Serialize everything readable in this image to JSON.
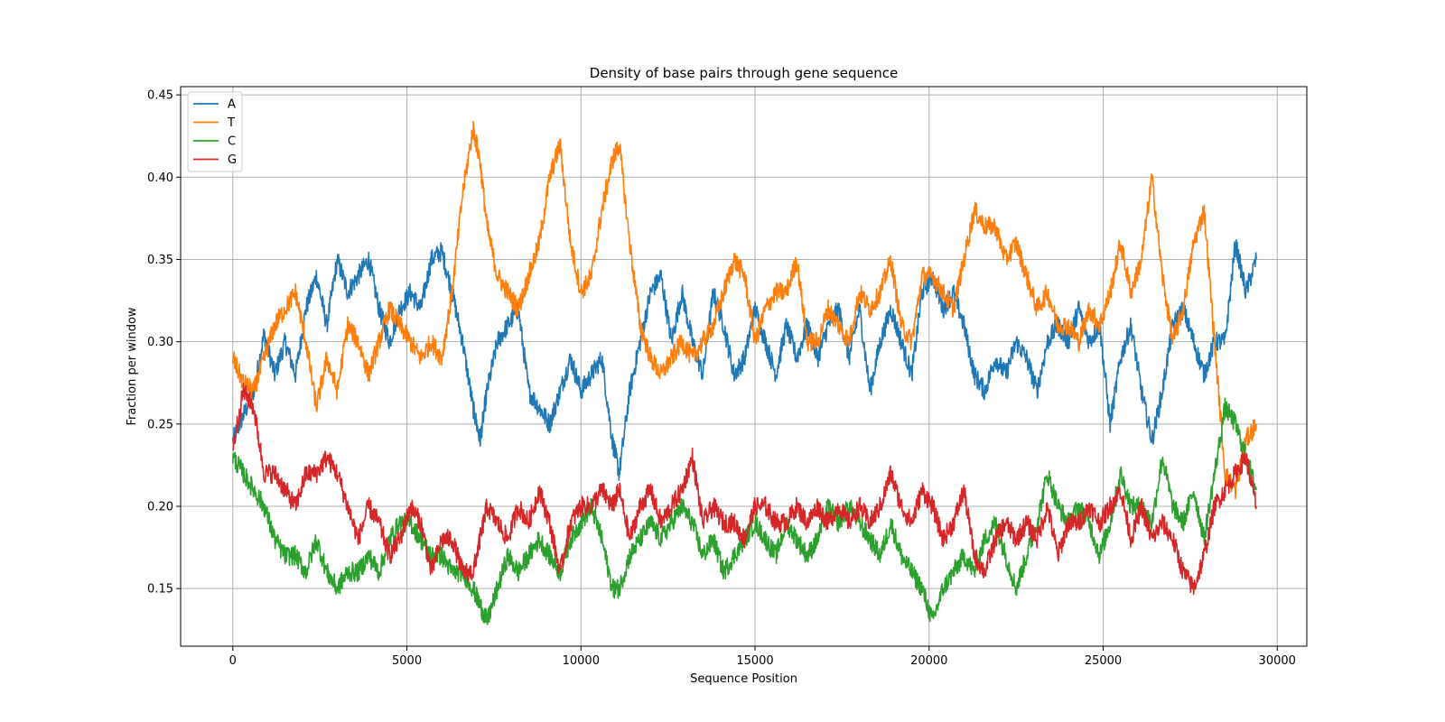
{
  "chart_data": {
    "type": "line",
    "title": "Density of base pairs through gene sequence",
    "xlabel": "Sequence Position",
    "ylabel": "Fraction per window",
    "xlim": [
      -1500,
      30850
    ],
    "ylim": [
      0.115,
      0.455
    ],
    "xticks": [
      0,
      5000,
      10000,
      15000,
      20000,
      25000,
      30000
    ],
    "yticks": [
      0.15,
      0.2,
      0.25,
      0.3,
      0.35,
      0.4,
      0.45
    ],
    "ytick_labels": [
      "0.15",
      "0.20",
      "0.25",
      "0.30",
      "0.35",
      "0.40",
      "0.45"
    ],
    "grid": true,
    "legend_position": "upper-left",
    "series": [
      {
        "name": "A",
        "color": "#1f77b4",
        "x": [
          0,
          300,
          600,
          900,
          1200,
          1500,
          1800,
          2100,
          2400,
          2700,
          3000,
          3300,
          3600,
          3900,
          4200,
          4500,
          4800,
          5100,
          5400,
          5700,
          6000,
          6300,
          6600,
          6900,
          7100,
          7300,
          7600,
          7900,
          8200,
          8500,
          8800,
          9100,
          9400,
          9700,
          10000,
          10300,
          10600,
          10900,
          11100,
          11400,
          11700,
          12000,
          12300,
          12600,
          12900,
          13200,
          13500,
          13800,
          14100,
          14400,
          14700,
          15000,
          15300,
          15600,
          15900,
          16200,
          16500,
          16800,
          17100,
          17400,
          17700,
          18000,
          18300,
          18600,
          18900,
          19200,
          19500,
          19800,
          20100,
          20400,
          20700,
          21000,
          21300,
          21600,
          21900,
          22200,
          22500,
          22800,
          23100,
          23400,
          23700,
          24000,
          24300,
          24600,
          24900,
          25200,
          25500,
          25800,
          26100,
          26400,
          26700,
          27000,
          27300,
          27600,
          27900,
          28200,
          28500,
          28800,
          29100,
          29400
        ],
        "values": [
          0.24,
          0.255,
          0.27,
          0.305,
          0.28,
          0.3,
          0.28,
          0.32,
          0.34,
          0.31,
          0.35,
          0.33,
          0.34,
          0.35,
          0.32,
          0.3,
          0.32,
          0.33,
          0.32,
          0.35,
          0.355,
          0.33,
          0.3,
          0.26,
          0.24,
          0.27,
          0.3,
          0.31,
          0.32,
          0.27,
          0.26,
          0.25,
          0.27,
          0.29,
          0.27,
          0.28,
          0.29,
          0.24,
          0.22,
          0.27,
          0.3,
          0.33,
          0.34,
          0.3,
          0.33,
          0.3,
          0.28,
          0.33,
          0.31,
          0.28,
          0.29,
          0.32,
          0.3,
          0.28,
          0.31,
          0.29,
          0.31,
          0.29,
          0.31,
          0.32,
          0.29,
          0.32,
          0.27,
          0.3,
          0.32,
          0.3,
          0.28,
          0.33,
          0.34,
          0.32,
          0.33,
          0.31,
          0.28,
          0.27,
          0.29,
          0.28,
          0.3,
          0.29,
          0.27,
          0.3,
          0.31,
          0.3,
          0.32,
          0.3,
          0.31,
          0.25,
          0.29,
          0.31,
          0.27,
          0.24,
          0.27,
          0.31,
          0.32,
          0.3,
          0.28,
          0.3,
          0.3,
          0.36,
          0.33,
          0.35
        ]
      },
      {
        "name": "T",
        "color": "#ff7f0e",
        "x": [
          0,
          300,
          600,
          900,
          1200,
          1500,
          1800,
          2100,
          2400,
          2700,
          3000,
          3300,
          3600,
          3900,
          4200,
          4500,
          4800,
          5100,
          5400,
          5700,
          6000,
          6300,
          6600,
          6900,
          7100,
          7300,
          7600,
          7900,
          8200,
          8500,
          8800,
          9100,
          9400,
          9700,
          10000,
          10300,
          10600,
          10900,
          11100,
          11400,
          11700,
          12000,
          12300,
          12600,
          12900,
          13200,
          13500,
          13800,
          14100,
          14400,
          14700,
          15000,
          15300,
          15600,
          15900,
          16200,
          16500,
          16800,
          17100,
          17400,
          17700,
          18000,
          18300,
          18600,
          18900,
          19200,
          19500,
          19800,
          20100,
          20400,
          20700,
          21000,
          21300,
          21600,
          21900,
          22200,
          22500,
          22800,
          23100,
          23400,
          23700,
          24000,
          24300,
          24600,
          24900,
          25200,
          25500,
          25800,
          26100,
          26400,
          26700,
          27000,
          27300,
          27600,
          27900,
          28200,
          28500,
          28800,
          29100,
          29400
        ],
        "values": [
          0.29,
          0.275,
          0.27,
          0.29,
          0.31,
          0.32,
          0.33,
          0.3,
          0.26,
          0.29,
          0.27,
          0.31,
          0.3,
          0.28,
          0.3,
          0.32,
          0.31,
          0.3,
          0.29,
          0.3,
          0.29,
          0.33,
          0.39,
          0.43,
          0.41,
          0.37,
          0.34,
          0.33,
          0.32,
          0.34,
          0.36,
          0.4,
          0.42,
          0.36,
          0.33,
          0.34,
          0.38,
          0.41,
          0.42,
          0.36,
          0.31,
          0.29,
          0.28,
          0.29,
          0.3,
          0.29,
          0.3,
          0.31,
          0.33,
          0.35,
          0.34,
          0.3,
          0.32,
          0.33,
          0.33,
          0.35,
          0.3,
          0.3,
          0.32,
          0.31,
          0.3,
          0.33,
          0.32,
          0.33,
          0.35,
          0.31,
          0.3,
          0.34,
          0.34,
          0.33,
          0.32,
          0.35,
          0.38,
          0.37,
          0.37,
          0.35,
          0.36,
          0.34,
          0.32,
          0.33,
          0.31,
          0.31,
          0.3,
          0.32,
          0.31,
          0.33,
          0.36,
          0.33,
          0.35,
          0.4,
          0.34,
          0.3,
          0.32,
          0.36,
          0.38,
          0.3,
          0.22,
          0.21,
          0.24,
          0.25
        ]
      },
      {
        "name": "C",
        "color": "#2ca02c",
        "x": [
          0,
          300,
          600,
          900,
          1200,
          1500,
          1800,
          2100,
          2400,
          2700,
          3000,
          3300,
          3600,
          3900,
          4200,
          4500,
          4800,
          5100,
          5400,
          5700,
          6000,
          6300,
          6600,
          6900,
          7100,
          7300,
          7600,
          7900,
          8200,
          8500,
          8800,
          9100,
          9400,
          9700,
          10000,
          10300,
          10600,
          10900,
          11100,
          11400,
          11700,
          12000,
          12300,
          12600,
          12900,
          13200,
          13500,
          13800,
          14100,
          14400,
          14700,
          15000,
          15300,
          15600,
          15900,
          16200,
          16500,
          16800,
          17100,
          17400,
          17700,
          18000,
          18300,
          18600,
          18900,
          19200,
          19500,
          19800,
          20100,
          20400,
          20700,
          21000,
          21300,
          21600,
          21900,
          22200,
          22500,
          22800,
          23100,
          23400,
          23700,
          24000,
          24300,
          24600,
          24900,
          25200,
          25500,
          25800,
          26100,
          26400,
          26700,
          27000,
          27300,
          27600,
          27900,
          28200,
          28500,
          28800,
          29100,
          29400
        ],
        "values": [
          0.23,
          0.22,
          0.21,
          0.2,
          0.18,
          0.17,
          0.17,
          0.16,
          0.18,
          0.16,
          0.15,
          0.16,
          0.16,
          0.17,
          0.16,
          0.18,
          0.19,
          0.19,
          0.18,
          0.17,
          0.17,
          0.16,
          0.16,
          0.15,
          0.14,
          0.13,
          0.15,
          0.17,
          0.16,
          0.17,
          0.18,
          0.17,
          0.16,
          0.18,
          0.19,
          0.2,
          0.18,
          0.15,
          0.15,
          0.17,
          0.18,
          0.19,
          0.18,
          0.19,
          0.2,
          0.19,
          0.17,
          0.18,
          0.16,
          0.17,
          0.18,
          0.19,
          0.18,
          0.17,
          0.19,
          0.18,
          0.17,
          0.18,
          0.2,
          0.19,
          0.2,
          0.19,
          0.18,
          0.17,
          0.19,
          0.17,
          0.16,
          0.15,
          0.13,
          0.15,
          0.16,
          0.17,
          0.16,
          0.18,
          0.19,
          0.17,
          0.15,
          0.17,
          0.19,
          0.22,
          0.2,
          0.19,
          0.2,
          0.19,
          0.17,
          0.19,
          0.22,
          0.2,
          0.2,
          0.19,
          0.23,
          0.2,
          0.19,
          0.21,
          0.18,
          0.22,
          0.26,
          0.25,
          0.23,
          0.21
        ]
      },
      {
        "name": "G",
        "color": "#d62728",
        "x": [
          0,
          300,
          600,
          900,
          1200,
          1500,
          1800,
          2100,
          2400,
          2700,
          3000,
          3300,
          3600,
          3900,
          4200,
          4500,
          4800,
          5100,
          5400,
          5700,
          6000,
          6300,
          6600,
          6900,
          7100,
          7300,
          7600,
          7900,
          8200,
          8500,
          8800,
          9100,
          9400,
          9700,
          10000,
          10300,
          10600,
          10900,
          11100,
          11400,
          11700,
          12000,
          12300,
          12600,
          12900,
          13200,
          13500,
          13800,
          14100,
          14400,
          14700,
          15000,
          15300,
          15600,
          15900,
          16200,
          16500,
          16800,
          17100,
          17400,
          17700,
          18000,
          18300,
          18600,
          18900,
          19200,
          19500,
          19800,
          20100,
          20400,
          20700,
          21000,
          21300,
          21600,
          21900,
          22200,
          22500,
          22800,
          23100,
          23400,
          23700,
          24000,
          24300,
          24600,
          24900,
          25200,
          25500,
          25800,
          26100,
          26400,
          26700,
          27000,
          27300,
          27600,
          27900,
          28200,
          28500,
          28800,
          29100,
          29400
        ],
        "values": [
          0.235,
          0.27,
          0.26,
          0.22,
          0.22,
          0.21,
          0.2,
          0.22,
          0.22,
          0.23,
          0.22,
          0.2,
          0.18,
          0.2,
          0.19,
          0.17,
          0.18,
          0.2,
          0.19,
          0.16,
          0.18,
          0.18,
          0.16,
          0.16,
          0.18,
          0.2,
          0.19,
          0.18,
          0.2,
          0.19,
          0.21,
          0.19,
          0.16,
          0.19,
          0.2,
          0.2,
          0.21,
          0.2,
          0.21,
          0.18,
          0.2,
          0.21,
          0.19,
          0.2,
          0.21,
          0.23,
          0.19,
          0.2,
          0.19,
          0.19,
          0.18,
          0.2,
          0.2,
          0.19,
          0.19,
          0.2,
          0.19,
          0.2,
          0.19,
          0.2,
          0.19,
          0.2,
          0.19,
          0.2,
          0.22,
          0.2,
          0.19,
          0.21,
          0.2,
          0.18,
          0.19,
          0.21,
          0.17,
          0.16,
          0.18,
          0.19,
          0.18,
          0.19,
          0.18,
          0.2,
          0.17,
          0.19,
          0.19,
          0.2,
          0.19,
          0.2,
          0.21,
          0.18,
          0.2,
          0.18,
          0.19,
          0.18,
          0.16,
          0.15,
          0.17,
          0.2,
          0.21,
          0.22,
          0.23,
          0.2
        ]
      }
    ]
  }
}
